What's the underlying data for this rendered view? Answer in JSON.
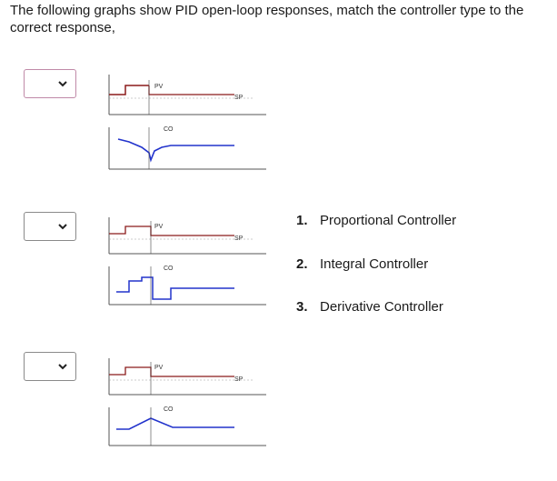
{
  "question": {
    "text": "The following graphs show PID open-loop responses, match the controller type to the correct response,"
  },
  "dropdowns": [
    {
      "selected": ""
    },
    {
      "selected": ""
    },
    {
      "selected": ""
    }
  ],
  "graph_labels": {
    "pv": "PV",
    "sp": "SP",
    "co": "CO"
  },
  "answers": [
    {
      "number": "1.",
      "label": "Proportional Controller"
    },
    {
      "number": "2.",
      "label": "Integral Controller"
    },
    {
      "number": "3.",
      "label": "Derivative Controller"
    }
  ],
  "colors": {
    "pv_line": "#8b1a1a",
    "co_line": "#2233cc",
    "axis": "#555555",
    "dropdown_border": "#8a8a8a",
    "dropdown_active_border": "#c08aa8"
  }
}
